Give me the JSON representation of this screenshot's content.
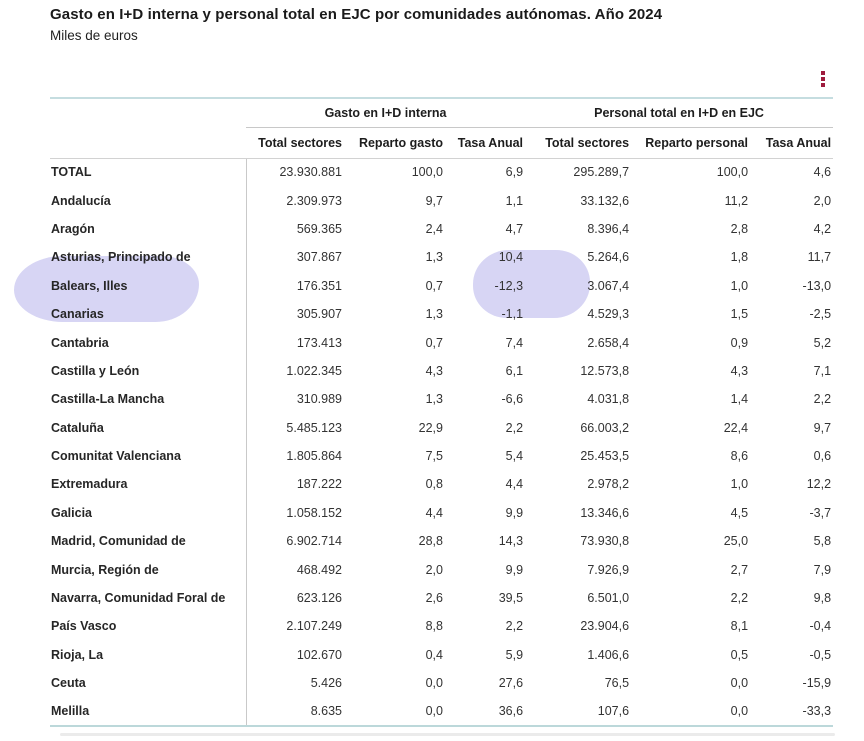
{
  "header": {
    "title": "Gasto en I+D interna y personal total en EJC por comunidades autónomas. Año 2024",
    "subtitle": "Miles de euros"
  },
  "toolbar": {
    "menu_icon": "kebab-menu-icon",
    "menu_color": "#9e1b3d"
  },
  "annotations": {
    "highlight_color": "#d7d5f4",
    "highlighted_row_label": "Balears, Illes",
    "highlighted_values": [
      "10,4",
      "-12,3",
      "-1,1",
      "3.067,4"
    ]
  },
  "chart_data": {
    "type": "table",
    "title": "Gasto en I+D interna y personal total en EJC por comunidades autónomas. Año 2024",
    "subtitle": "Miles de euros",
    "units": "Miles de euros",
    "column_groups": [
      {
        "label": "Gasto en I+D interna",
        "span": 3
      },
      {
        "label": "Personal total en I+D en EJC",
        "span": 3
      }
    ],
    "columns": [
      "Total sectores",
      "Reparto gasto",
      "Tasa Anual",
      "Total sectores",
      "Reparto personal",
      "Tasa Anual"
    ],
    "rows": [
      {
        "label": "TOTAL",
        "values": [
          "23.930.881",
          "100,0",
          "6,9",
          "295.289,7",
          "100,0",
          "4,6"
        ]
      },
      {
        "label": "Andalucía",
        "values": [
          "2.309.973",
          "9,7",
          "1,1",
          "33.132,6",
          "11,2",
          "2,0"
        ]
      },
      {
        "label": "Aragón",
        "values": [
          "569.365",
          "2,4",
          "4,7",
          "8.396,4",
          "2,8",
          "4,2"
        ]
      },
      {
        "label": "Asturias, Principado de",
        "values": [
          "307.867",
          "1,3",
          "10,4",
          "5.264,6",
          "1,8",
          "11,7"
        ]
      },
      {
        "label": "Balears, Illes",
        "values": [
          "176.351",
          "0,7",
          "-12,3",
          "3.067,4",
          "1,0",
          "-13,0"
        ]
      },
      {
        "label": "Canarias",
        "values": [
          "305.907",
          "1,3",
          "-1,1",
          "4.529,3",
          "1,5",
          "-2,5"
        ]
      },
      {
        "label": "Cantabria",
        "values": [
          "173.413",
          "0,7",
          "7,4",
          "2.658,4",
          "0,9",
          "5,2"
        ]
      },
      {
        "label": "Castilla y León",
        "values": [
          "1.022.345",
          "4,3",
          "6,1",
          "12.573,8",
          "4,3",
          "7,1"
        ]
      },
      {
        "label": "Castilla-La Mancha",
        "values": [
          "310.989",
          "1,3",
          "-6,6",
          "4.031,8",
          "1,4",
          "2,2"
        ]
      },
      {
        "label": "Cataluña",
        "values": [
          "5.485.123",
          "22,9",
          "2,2",
          "66.003,2",
          "22,4",
          "9,7"
        ]
      },
      {
        "label": "Comunitat Valenciana",
        "values": [
          "1.805.864",
          "7,5",
          "5,4",
          "25.453,5",
          "8,6",
          "0,6"
        ]
      },
      {
        "label": "Extremadura",
        "values": [
          "187.222",
          "0,8",
          "4,4",
          "2.978,2",
          "1,0",
          "12,2"
        ]
      },
      {
        "label": "Galicia",
        "values": [
          "1.058.152",
          "4,4",
          "9,9",
          "13.346,6",
          "4,5",
          "-3,7"
        ]
      },
      {
        "label": "Madrid, Comunidad de",
        "values": [
          "6.902.714",
          "28,8",
          "14,3",
          "73.930,8",
          "25,0",
          "5,8"
        ]
      },
      {
        "label": "Murcia, Región de",
        "values": [
          "468.492",
          "2,0",
          "9,9",
          "7.926,9",
          "2,7",
          "7,9"
        ]
      },
      {
        "label": "Navarra, Comunidad Foral de",
        "values": [
          "623.126",
          "2,6",
          "39,5",
          "6.501,0",
          "2,2",
          "9,8"
        ]
      },
      {
        "label": "País Vasco",
        "values": [
          "2.107.249",
          "8,8",
          "2,2",
          "23.904,6",
          "8,1",
          "-0,4"
        ]
      },
      {
        "label": "Rioja, La",
        "values": [
          "102.670",
          "0,4",
          "5,9",
          "1.406,6",
          "0,5",
          "-0,5"
        ]
      },
      {
        "label": "Ceuta",
        "values": [
          "5.426",
          "0,0",
          "27,6",
          "76,5",
          "0,0",
          "-15,9"
        ]
      },
      {
        "label": "Melilla",
        "values": [
          "8.635",
          "0,0",
          "36,6",
          "107,6",
          "0,0",
          "-33,3"
        ]
      }
    ]
  }
}
